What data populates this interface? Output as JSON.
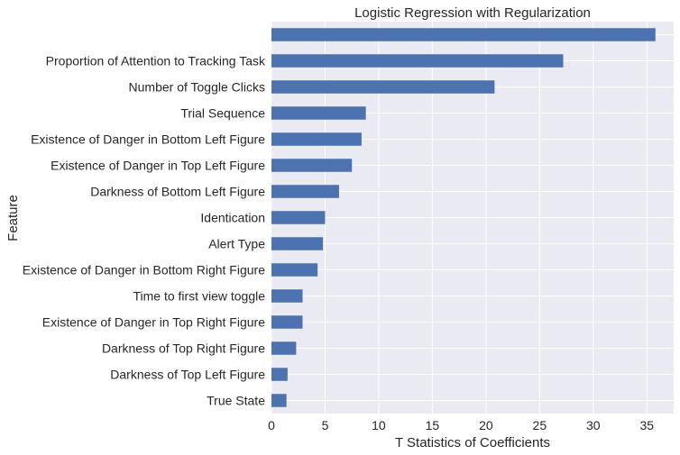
{
  "chart_data": {
    "type": "bar",
    "orientation": "horizontal",
    "title": "Logistic Regression with Regularization",
    "xlabel": "T Statistics of Coefficients",
    "ylabel": "Feature",
    "xlim": [
      0,
      37.5
    ],
    "xticks": [
      0,
      5,
      10,
      15,
      20,
      25,
      30,
      35
    ],
    "grid": true,
    "bar_color": "#4c72b0",
    "plot_background": "#eaeaf2",
    "categories": [
      "",
      "Proportion of Attention to Tracking Task",
      "Number of Toggle Clicks",
      "Trial Sequence",
      "Existence of Danger in Bottom Left Figure",
      "Existence of Danger in Top Left Figure",
      "Darkness of Bottom Left Figure",
      "Identication",
      "Alert Type",
      "Existence of Danger in Bottom Right Figure",
      "Time to first view toggle",
      "Existence of Danger in Top Right Figure",
      "Darkness of Top Right Figure",
      "Darkness of Top Left Figure",
      "True State"
    ],
    "values": [
      35.8,
      27.2,
      20.8,
      8.8,
      8.4,
      7.5,
      6.3,
      5.0,
      4.8,
      4.3,
      2.9,
      2.9,
      2.3,
      1.5,
      1.4
    ]
  }
}
